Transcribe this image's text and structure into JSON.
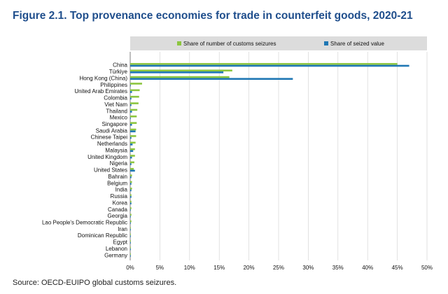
{
  "figure": {
    "title": "Figure 2.1. Top provenance economies for trade in counterfeit goods, 2020-21",
    "source": "Source: OECD-EUIPO global customs seizures."
  },
  "colors": {
    "series_1": "#8cc63f",
    "series_2": "#1f77b4",
    "legend_bg": "#dcdcdc",
    "grid": "#cfcfcf",
    "plot_bg": "#ffffff"
  },
  "chart_data": {
    "type": "bar",
    "orientation": "horizontal",
    "categories": [
      "China",
      "Türkiye",
      "Hong Kong (China)",
      "Philippines",
      "United Arab Emirates",
      "Colombia",
      "Viet Nam",
      "Thailand",
      "Mexico",
      "Singapore",
      "Saudi Arabia",
      "Chinese Taipei",
      "Netherlands",
      "Malaysia",
      "United Kingdom",
      "Nigeria",
      "United States",
      "Bahrain",
      "Belgium",
      "India",
      "Russia",
      "Korea",
      "Canada",
      "Georgia",
      "Lao People's Democratic Republic",
      "Iran",
      "Dominican Republic",
      "Egypt",
      "Lebanon",
      "Germany"
    ],
    "series": [
      {
        "name": "Share of number of customs seizures",
        "values": [
          45.0,
          17.2,
          16.7,
          2.0,
          1.6,
          1.5,
          1.4,
          1.2,
          1.1,
          1.1,
          1.0,
          1.0,
          0.9,
          0.8,
          0.8,
          0.7,
          0.6,
          0.3,
          0.3,
          0.3,
          0.2,
          0.2,
          0.2,
          0.2,
          0.2,
          0.1,
          0.1,
          0.1,
          0.1,
          0.1
        ]
      },
      {
        "name": "Share of seized value",
        "values": [
          47.0,
          15.7,
          27.4,
          0.1,
          0.3,
          0.2,
          0.2,
          0.3,
          0.1,
          0.3,
          0.9,
          0.2,
          0.4,
          0.5,
          0.3,
          0.2,
          0.8,
          0.2,
          0.2,
          0.2,
          0.2,
          0.2,
          0.1,
          0.1,
          0.1,
          0.1,
          0.1,
          0.1,
          0.1,
          0.1
        ]
      }
    ],
    "x_ticks": [
      "0%",
      "5%",
      "10%",
      "15%",
      "20%",
      "25%",
      "30%",
      "35%",
      "40%",
      "45%",
      "50%"
    ],
    "xlim": [
      0,
      50
    ],
    "legend_position": "top-right",
    "grid": true
  }
}
